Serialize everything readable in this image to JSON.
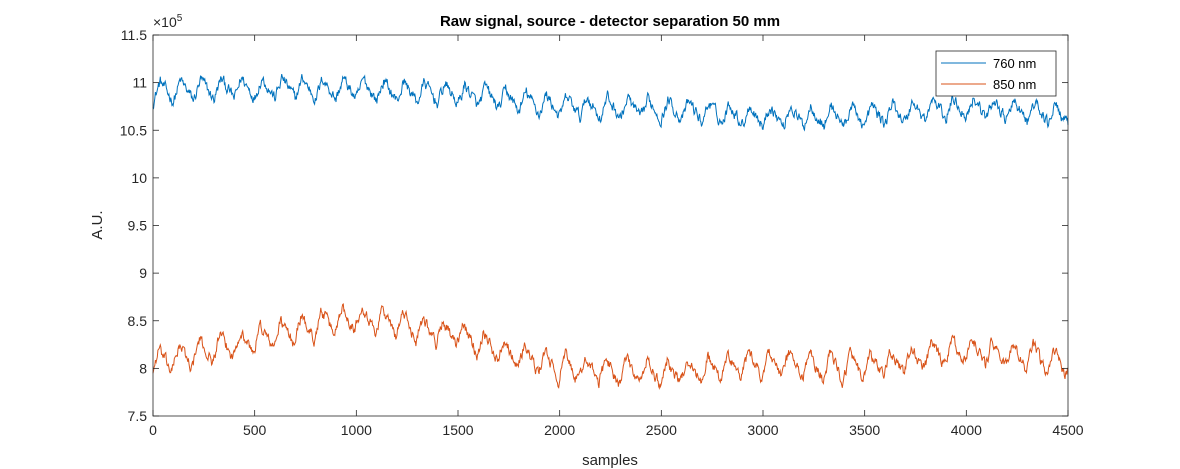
{
  "chart_data": {
    "type": "line",
    "title": "Raw signal, source - detector separation 50 mm",
    "xlabel": "samples",
    "ylabel": "A.U.",
    "y_exponent_label": "×10",
    "y_exponent_power": "5",
    "xlim": [
      0,
      4500
    ],
    "ylim": [
      7.5,
      11.5
    ],
    "x_ticks": [
      0,
      500,
      1000,
      1500,
      2000,
      2500,
      3000,
      3500,
      4000,
      4500
    ],
    "x_tick_labels": [
      "0",
      "500",
      "1000",
      "1500",
      "2000",
      "2500",
      "3000",
      "3500",
      "4000",
      "4500"
    ],
    "y_ticks": [
      7.5,
      8,
      8.5,
      9,
      9.5,
      10,
      10.5,
      11,
      11.5
    ],
    "y_tick_labels": [
      "7.5",
      "8",
      "8.5",
      "9",
      "9.5",
      "10",
      "10.5",
      "11",
      "11.5"
    ],
    "grid": false,
    "legend_position": "top-right",
    "series": [
      {
        "name": "760 nm",
        "color": "#0072BD",
        "period": 100,
        "oscillation_amplitude": 0.22,
        "noise": 0.05,
        "x": [
          0,
          500,
          1000,
          1500,
          2000,
          2500,
          3000,
          3500,
          4000,
          4500
        ],
        "baseline": [
          10.9,
          10.95,
          10.93,
          10.88,
          10.75,
          10.72,
          10.65,
          10.65,
          10.75,
          10.65
        ]
      },
      {
        "name": "850 nm",
        "color": "#D95319",
        "period": 100,
        "oscillation_amplitude": 0.28,
        "noise": 0.05,
        "x": [
          0,
          500,
          1000,
          1500,
          2000,
          2500,
          3000,
          3500,
          4000,
          4500
        ],
        "baseline": [
          8.05,
          8.3,
          8.55,
          8.35,
          8.0,
          7.95,
          8.05,
          8.0,
          8.2,
          8.05
        ]
      }
    ]
  }
}
